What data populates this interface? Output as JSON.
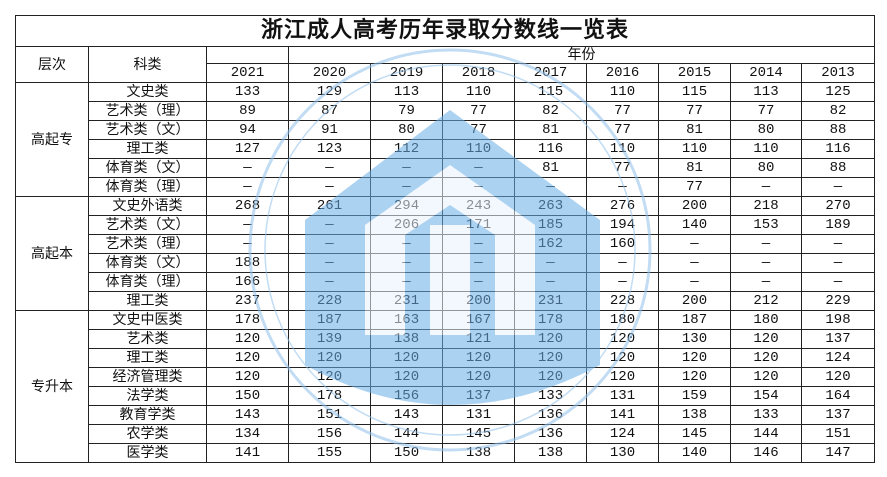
{
  "title": "浙江成人高考历年录取分数线一览表",
  "headers": {
    "level": "层次",
    "category": "科类",
    "year_group": "年份"
  },
  "years": [
    "2021",
    "2020",
    "2019",
    "2018",
    "2017",
    "2016",
    "2015",
    "2014",
    "2013"
  ],
  "groups": [
    {
      "level": "高起专",
      "rows": [
        {
          "category": "文史类",
          "scores": [
            "133",
            "129",
            "113",
            "110",
            "115",
            "110",
            "115",
            "113",
            "125"
          ]
        },
        {
          "category": "艺术类（理）",
          "scores": [
            "89",
            "87",
            "79",
            "77",
            "82",
            "77",
            "77",
            "77",
            "82"
          ]
        },
        {
          "category": "艺术类（文）",
          "scores": [
            "94",
            "91",
            "80",
            "77",
            "81",
            "77",
            "81",
            "80",
            "88"
          ]
        },
        {
          "category": "理工类",
          "scores": [
            "127",
            "123",
            "112",
            "110",
            "116",
            "110",
            "110",
            "110",
            "116"
          ]
        },
        {
          "category": "体育类（文）",
          "scores": [
            "—",
            "—",
            "—",
            "—",
            "81",
            "77",
            "81",
            "80",
            "88"
          ]
        },
        {
          "category": "体育类（理）",
          "scores": [
            "—",
            "—",
            "—",
            "—",
            "—",
            "—",
            "77",
            "—",
            "—"
          ]
        }
      ]
    },
    {
      "level": "高起本",
      "rows": [
        {
          "category": "文史外语类",
          "scores": [
            "268",
            "261",
            "294",
            "243",
            "263",
            "276",
            "200",
            "218",
            "270"
          ]
        },
        {
          "category": "艺术类（文）",
          "scores": [
            "—",
            "—",
            "206",
            "171",
            "185",
            "194",
            "140",
            "153",
            "189"
          ]
        },
        {
          "category": "艺术类（理）",
          "scores": [
            "—",
            "—",
            "—",
            "—",
            "162",
            "160",
            "—",
            "—",
            "—"
          ]
        },
        {
          "category": "体育类（文）",
          "scores": [
            "188",
            "—",
            "—",
            "—",
            "—",
            "—",
            "—",
            "—",
            "—"
          ]
        },
        {
          "category": "体育类（理）",
          "scores": [
            "166",
            "—",
            "—",
            "—",
            "—",
            "—",
            "—",
            "—",
            "—"
          ]
        },
        {
          "category": "理工类",
          "scores": [
            "237",
            "228",
            "231",
            "200",
            "231",
            "228",
            "200",
            "212",
            "229"
          ]
        }
      ]
    },
    {
      "level": "专升本",
      "rows": [
        {
          "category": "文史中医类",
          "scores": [
            "178",
            "187",
            "163",
            "167",
            "178",
            "180",
            "187",
            "180",
            "198"
          ]
        },
        {
          "category": "艺术类",
          "scores": [
            "120",
            "139",
            "138",
            "121",
            "120",
            "120",
            "130",
            "120",
            "137"
          ]
        },
        {
          "category": "理工类",
          "scores": [
            "120",
            "120",
            "120",
            "120",
            "120",
            "120",
            "120",
            "120",
            "124"
          ]
        },
        {
          "category": "经济管理类",
          "scores": [
            "120",
            "120",
            "120",
            "120",
            "120",
            "120",
            "120",
            "120",
            "120"
          ]
        },
        {
          "category": "法学类",
          "scores": [
            "150",
            "178",
            "156",
            "137",
            "133",
            "131",
            "159",
            "154",
            "164"
          ]
        },
        {
          "category": "教育学类",
          "scores": [
            "143",
            "151",
            "143",
            "131",
            "136",
            "141",
            "138",
            "133",
            "137"
          ]
        },
        {
          "category": "农学类",
          "scores": [
            "134",
            "156",
            "144",
            "145",
            "136",
            "124",
            "145",
            "144",
            "151"
          ]
        },
        {
          "category": "医学类",
          "scores": [
            "141",
            "155",
            "150",
            "138",
            "138",
            "130",
            "140",
            "146",
            "147"
          ]
        }
      ]
    }
  ],
  "watermark": {
    "icon": "education-logo-watermark",
    "color": "#4a90d0"
  }
}
